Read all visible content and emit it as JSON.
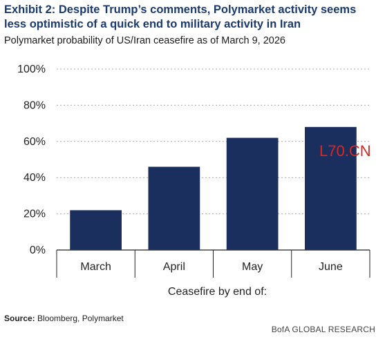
{
  "title": "Exhibit 2: Despite Trump’s comments, Polymarket activity seems less optimistic of a quick end to military activity in Iran",
  "subtitle": "Polymarket probability of US/Iran ceasefire as of March 9, 2026",
  "source_label": "Source:",
  "source_text": " Bloomberg, Polymarket",
  "footer": "BofA GLOBAL RESEARCH",
  "watermark": "L70.CN",
  "colors": {
    "bar": "#1b2f5e",
    "grid": "#a9a9a9",
    "axis": "#222222",
    "title": "#1a3a6e"
  },
  "chart_data": {
    "type": "bar",
    "categories": [
      "March",
      "April",
      "May",
      "June"
    ],
    "values": [
      22,
      46,
      62,
      68
    ],
    "yticks": [
      "0%",
      "20%",
      "40%",
      "60%",
      "80%",
      "100%"
    ],
    "ylim": [
      0,
      100
    ],
    "xlabel": "Ceasefire by end of:",
    "ylabel": "",
    "grid": true
  }
}
